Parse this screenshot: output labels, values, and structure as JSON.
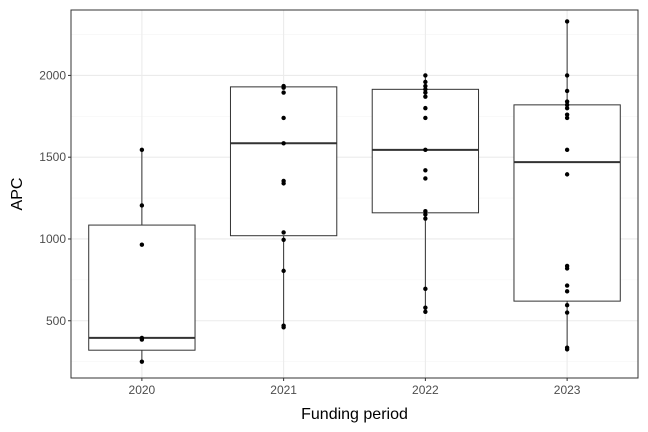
{
  "chart_data": {
    "type": "box",
    "xlabel": "Funding period",
    "ylabel": "APC",
    "categories": [
      "2020",
      "2021",
      "2022",
      "2023"
    ],
    "ylim": [
      150,
      2400
    ],
    "yticks": [
      500,
      1000,
      1500,
      2000
    ],
    "grid": true,
    "boxes": [
      {
        "category": "2020",
        "q1": 320,
        "median": 395,
        "q3": 1085,
        "whisker_low": 250,
        "whisker_high": 1545,
        "points": [
          1545,
          1205,
          965,
          395,
          385,
          250
        ]
      },
      {
        "category": "2021",
        "q1": 1020,
        "median": 1585,
        "q3": 1930,
        "whisker_low": 460,
        "whisker_high": 1935,
        "points": [
          1935,
          1925,
          1895,
          1740,
          1585,
          1355,
          1340,
          1040,
          995,
          805,
          470,
          460
        ]
      },
      {
        "category": "2022",
        "q1": 1160,
        "median": 1545,
        "q3": 1915,
        "whisker_low": 555,
        "whisker_high": 2000,
        "points": [
          2000,
          1960,
          1935,
          1915,
          1895,
          1870,
          1800,
          1740,
          1545,
          1420,
          1370,
          1170,
          1150,
          1125,
          695,
          580,
          555
        ]
      },
      {
        "category": "2023",
        "q1": 620,
        "median": 1470,
        "q3": 1820,
        "whisker_low": 325,
        "whisker_high": 2330,
        "points": [
          2330,
          2000,
          1905,
          1840,
          1820,
          1800,
          1760,
          1740,
          1545,
          1395,
          835,
          820,
          715,
          680,
          595,
          550,
          335,
          325
        ]
      }
    ],
    "colors": {
      "panel_border": "#333333",
      "grid_major": "#ebebeb",
      "grid_minor": "#f5f5f5",
      "box": "#333333",
      "point": "#000000"
    }
  }
}
